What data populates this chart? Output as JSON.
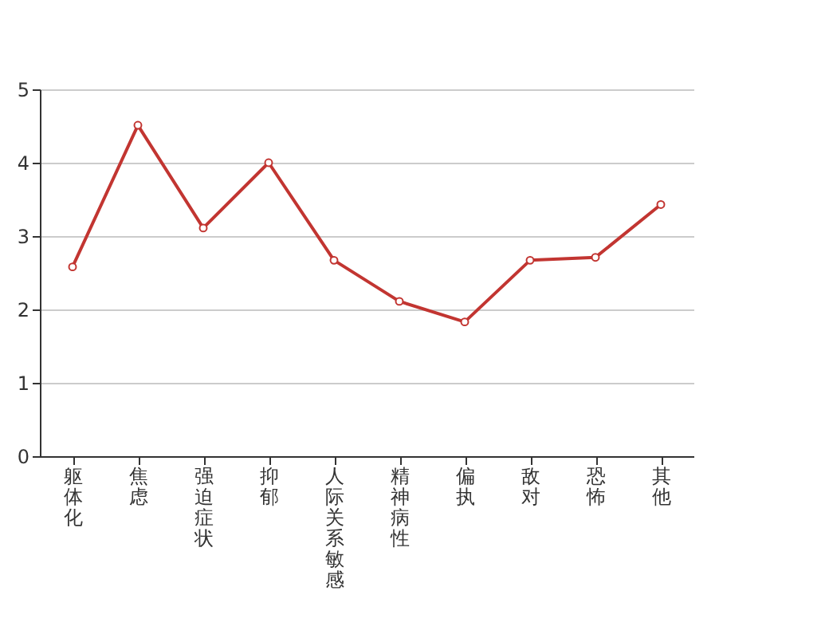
{
  "chart_data": {
    "type": "line",
    "categories": [
      "躯体化",
      "焦虑",
      "强迫症状",
      "抑郁",
      "人际关系敏感",
      "精神病性",
      "偏执",
      "敌对",
      "恐怖",
      "其他"
    ],
    "series": [
      {
        "color": "#c23531",
        "values": [
          2.58,
          4.51,
          3.11,
          4.0,
          2.67,
          2.11,
          1.83,
          2.67,
          2.71,
          3.43
        ]
      }
    ],
    "ylim": [
      0,
      5
    ],
    "yticks": [
      0,
      1,
      2,
      3,
      4,
      5
    ],
    "grid": "y",
    "marker": "circle",
    "line_style": "solid"
  }
}
